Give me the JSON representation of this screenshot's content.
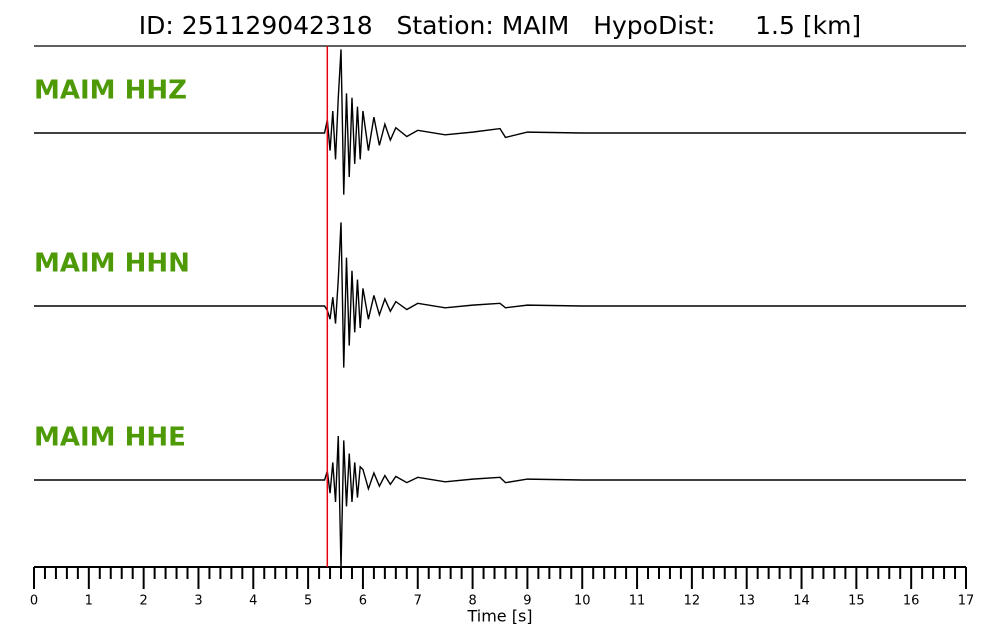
{
  "chart_data": {
    "type": "line",
    "title": "ID: 251129042318   Station: MAIM   HypoDist:     1.5 [km]",
    "xlabel": "Time [s]",
    "x": [
      0,
      5.3,
      5.35,
      5.4,
      5.45,
      5.5,
      5.55,
      5.6,
      5.65,
      5.7,
      5.75,
      5.8,
      5.85,
      5.9,
      5.95,
      6.0,
      6.1,
      6.2,
      6.3,
      6.4,
      6.5,
      6.6,
      6.8,
      7.0,
      7.5,
      8.0,
      8.5,
      8.6,
      9.0,
      10,
      12,
      17
    ],
    "series": [
      {
        "name": "MAIM HHZ",
        "color": "#000000",
        "label_color": "#4e9a06",
        "values": [
          0,
          0,
          0.15,
          -0.2,
          0.25,
          -0.3,
          0.4,
          0.95,
          -0.7,
          0.45,
          -0.5,
          0.4,
          -0.35,
          0.3,
          -0.3,
          0.25,
          -0.2,
          0.18,
          -0.14,
          0.1,
          -0.08,
          0.06,
          -0.04,
          0.03,
          -0.02,
          0.01,
          0.05,
          -0.05,
          0.01,
          0,
          0,
          0
        ]
      },
      {
        "name": "MAIM HHN",
        "color": "#000000",
        "label_color": "#4e9a06",
        "values": [
          0,
          0,
          -0.05,
          -0.15,
          0.1,
          -0.2,
          0.3,
          0.95,
          -0.7,
          0.55,
          -0.45,
          0.4,
          -0.3,
          0.3,
          -0.25,
          0.2,
          -0.15,
          0.12,
          -0.1,
          0.08,
          -0.06,
          0.05,
          -0.04,
          0.03,
          -0.02,
          0.01,
          0.03,
          -0.02,
          0.01,
          0,
          0,
          0
        ]
      },
      {
        "name": "MAIM HHE",
        "color": "#000000",
        "label_color": "#4e9a06",
        "values": [
          0,
          0,
          0.1,
          -0.15,
          0.2,
          -0.25,
          0.5,
          -1.0,
          0.45,
          -0.3,
          0.3,
          -0.25,
          0.2,
          -0.2,
          0.15,
          0.12,
          -0.1,
          0.08,
          -0.07,
          0.05,
          -0.05,
          0.04,
          -0.03,
          0.03,
          -0.02,
          0.01,
          0.03,
          -0.03,
          0.01,
          0,
          0,
          0
        ]
      }
    ],
    "ylim": [
      -1,
      1
    ],
    "xlim": [
      0,
      17
    ],
    "xticks": [
      0,
      1,
      2,
      3,
      4,
      5,
      6,
      7,
      8,
      9,
      10,
      11,
      12,
      13,
      14,
      15,
      16,
      17
    ],
    "minor_ticks_per_major": 5,
    "pick_x": 5.35,
    "pick_color": "#e8000b"
  }
}
